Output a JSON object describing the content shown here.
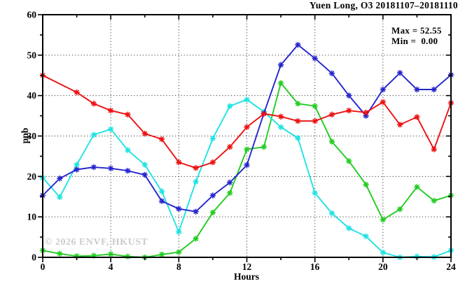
{
  "title": "Yuen Long, O3 20181107–20181110",
  "legend": {
    "max": "Max = 52.55",
    "min": "Min =  0.00"
  },
  "watermark": "© 2026 ENVF, HKUST",
  "chart_data": {
    "type": "line",
    "title": "Yuen Long, O3 20181107–20181110",
    "xlabel": "Hours",
    "ylabel": "ppb",
    "xlim": [
      0,
      24
    ],
    "ylim": [
      0,
      60
    ],
    "xticks": [
      0,
      4,
      8,
      12,
      16,
      20,
      24
    ],
    "xticks_minor": [
      2,
      6,
      10,
      14,
      18,
      22
    ],
    "yticks": [
      0,
      10,
      20,
      30,
      40,
      50,
      60
    ],
    "yticks_minor": [
      5,
      15,
      25,
      35,
      45,
      55
    ],
    "grid": "dotted",
    "legend_position": "top-right-inside",
    "annotations": {
      "max": 52.55,
      "min": 0.0
    },
    "marker": "asterisk",
    "series": [
      {
        "name": "green-series",
        "color": "#22cc22",
        "x": [
          0,
          1,
          2,
          3,
          4,
          5,
          6,
          7,
          8,
          9,
          10,
          11,
          12,
          13,
          14,
          15,
          16,
          17,
          18,
          19,
          20,
          21,
          22,
          23,
          24
        ],
        "y": [
          1.7,
          0.9,
          0.3,
          0.4,
          0.8,
          0.2,
          0.0,
          0.7,
          1.3,
          4.6,
          11.1,
          15.9,
          26.7,
          27.3,
          43.1,
          38.0,
          37.4,
          28.6,
          23.8,
          18.0,
          9.3,
          11.9,
          17.4,
          14.0,
          15.3
        ]
      },
      {
        "name": "cyan-series",
        "color": "#1fe3e3",
        "x": [
          0,
          1,
          2,
          3,
          4,
          5,
          6,
          7,
          8,
          9,
          10,
          11,
          12,
          13,
          14,
          15,
          16,
          17,
          18,
          19,
          20,
          21,
          22,
          23,
          24
        ],
        "y": [
          19.7,
          14.9,
          22.9,
          30.3,
          31.7,
          26.5,
          22.9,
          16.3,
          6.3,
          18.7,
          29.4,
          37.4,
          39.0,
          36.0,
          32.2,
          29.5,
          15.9,
          10.9,
          7.2,
          5.2,
          1.2,
          0.0,
          0.2,
          0.1,
          1.7
        ]
      },
      {
        "name": "blue-series",
        "color": "#2525cd",
        "x": [
          0,
          1,
          2,
          3,
          4,
          5,
          6,
          7,
          8,
          9,
          10,
          11,
          12,
          13,
          14,
          15,
          16,
          17,
          18,
          19,
          20,
          21,
          22,
          23,
          24
        ],
        "y": [
          15.3,
          19.5,
          21.7,
          22.3,
          22.0,
          21.4,
          20.4,
          13.9,
          12.0,
          11.3,
          15.3,
          18.5,
          22.8,
          35.6,
          47.6,
          52.55,
          49.2,
          45.5,
          40.0,
          35.0,
          41.5,
          45.6,
          41.5,
          41.5,
          45.1
        ]
      },
      {
        "name": "red-series",
        "color": "#ee1111",
        "x": [
          0,
          2,
          3,
          4,
          5,
          6,
          7,
          8,
          9,
          10,
          11,
          12,
          13,
          14,
          15,
          16,
          17,
          18,
          19,
          20,
          21,
          22,
          23,
          24
        ],
        "y": [
          45.0,
          40.8,
          38.0,
          36.3,
          35.3,
          30.6,
          29.2,
          23.5,
          22.1,
          23.5,
          27.3,
          32.2,
          35.5,
          34.8,
          33.7,
          33.7,
          35.3,
          36.3,
          35.8,
          38.4,
          32.8,
          34.7,
          26.7,
          38.2
        ]
      }
    ]
  }
}
